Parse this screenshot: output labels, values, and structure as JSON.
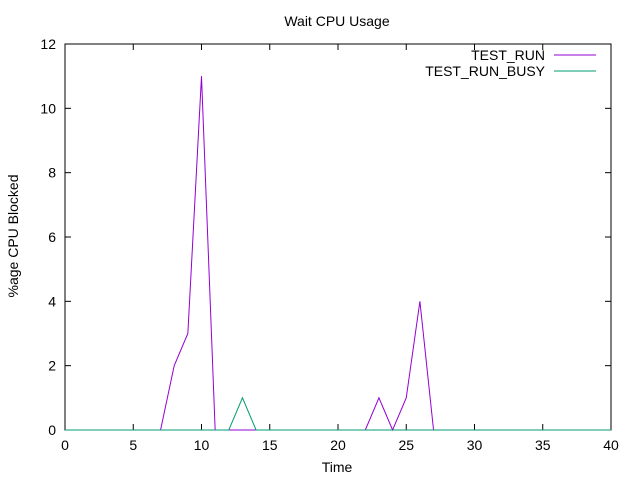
{
  "chart_data": {
    "type": "line",
    "title": "Wait CPU Usage",
    "xlabel": "Time",
    "ylabel": "%age CPU Blocked",
    "xlim": [
      0,
      40
    ],
    "ylim": [
      0,
      12
    ],
    "xticks": [
      0,
      5,
      10,
      15,
      20,
      25,
      30,
      35,
      40
    ],
    "yticks": [
      0,
      2,
      4,
      6,
      8,
      10,
      12
    ],
    "grid": false,
    "legend_position": "top-right",
    "series": [
      {
        "name": "TEST_RUN",
        "color": "#9400d3",
        "x": [
          0,
          1,
          2,
          3,
          4,
          5,
          6,
          7,
          8,
          9,
          10,
          11,
          12,
          13,
          14,
          15,
          16,
          17,
          18,
          19,
          20,
          21,
          22,
          23,
          24,
          25,
          26,
          27,
          28,
          29,
          30,
          31,
          32,
          33,
          34,
          35,
          36,
          37,
          38,
          39,
          40
        ],
        "y": [
          0,
          0,
          0,
          0,
          0,
          0,
          0,
          0,
          2,
          3,
          11,
          0,
          0,
          0,
          0,
          0,
          0,
          0,
          0,
          0,
          0,
          0,
          0,
          1,
          0,
          1,
          4,
          0,
          0,
          0,
          0,
          0,
          0,
          0,
          0,
          0,
          0,
          0,
          0,
          0,
          0
        ]
      },
      {
        "name": "TEST_RUN_BUSY",
        "color": "#009e73",
        "x": [
          0,
          1,
          2,
          3,
          4,
          5,
          6,
          7,
          8,
          9,
          10,
          11,
          12,
          13,
          14,
          15,
          16,
          17,
          18,
          19,
          20,
          21,
          22,
          23,
          24,
          25,
          26,
          27,
          28,
          29,
          30,
          31,
          32,
          33,
          34,
          35,
          36,
          37,
          38,
          39,
          40
        ],
        "y": [
          0,
          0,
          0,
          0,
          0,
          0,
          0,
          0,
          0,
          0,
          0,
          0,
          0,
          1,
          0,
          0,
          0,
          0,
          0,
          0,
          0,
          0,
          0,
          0,
          0,
          0,
          0,
          0,
          0,
          0,
          0,
          0,
          0,
          0,
          0,
          0,
          0,
          0,
          0,
          0,
          0
        ]
      }
    ]
  }
}
